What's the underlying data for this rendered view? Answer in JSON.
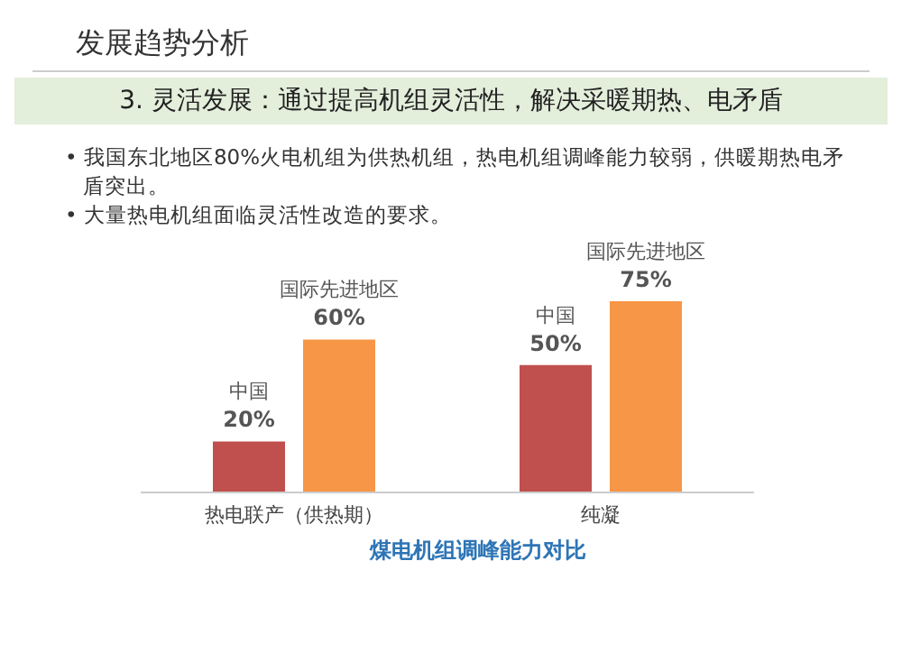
{
  "chart_data": {
    "type": "bar",
    "title": "煤电机组调峰能力对比",
    "annotations": [
      "发展趋势分析",
      "3. 灵活发展：通过提高机组灵活性，解决采暖期热、电矛盾",
      "• 我国东北地区80%火电机组为供热机组，热电机组调峰能力较弱，供暖期热电矛盾突出。",
      "• 大量热电机组面临灵活性改造的要求。"
    ],
    "categories": [
      "热电联产（供热期）",
      "纯凝"
    ],
    "series": [
      {
        "name": "中国",
        "color": "#c0504d",
        "values": [
          20,
          50
        ],
        "value_labels": [
          "20%",
          "50%"
        ]
      },
      {
        "name": "国际先进地区",
        "color": "#f79646",
        "values": [
          60,
          75
        ],
        "value_labels": [
          "60%",
          "75%"
        ]
      }
    ]
  }
}
